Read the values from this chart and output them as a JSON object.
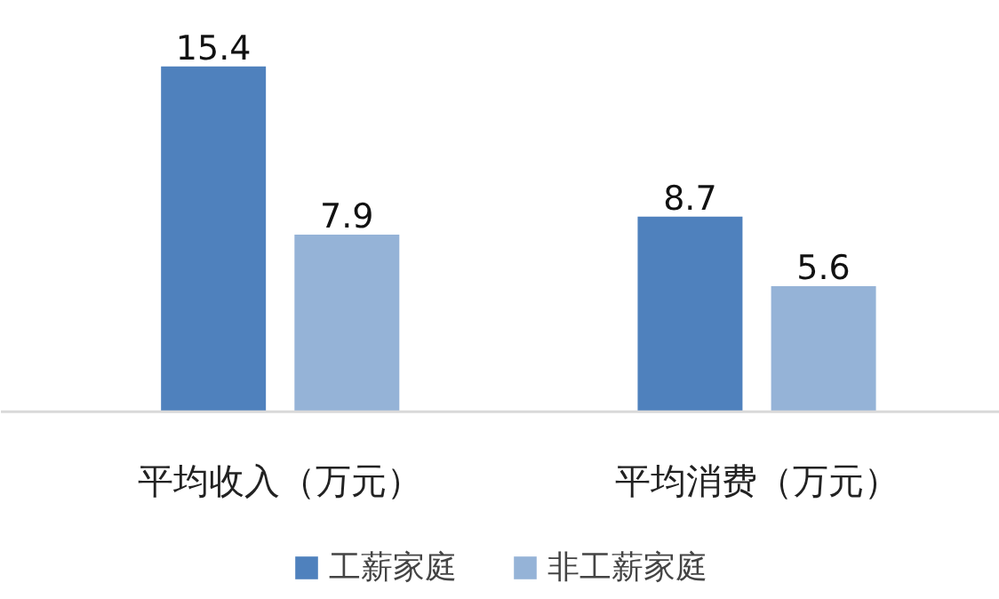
{
  "chart_data": {
    "type": "bar",
    "categories": [
      "平均收入（万元）",
      "平均消费（万元）"
    ],
    "series": [
      {
        "name": "工薪家庭",
        "color": "#4f81bd",
        "values": [
          15.4,
          8.7
        ]
      },
      {
        "name": "非工薪家庭",
        "color": "#95b3d7",
        "values": [
          7.9,
          5.6
        ]
      }
    ],
    "tick_labels": "x",
    "data_labels": true,
    "legend": "bottom"
  }
}
